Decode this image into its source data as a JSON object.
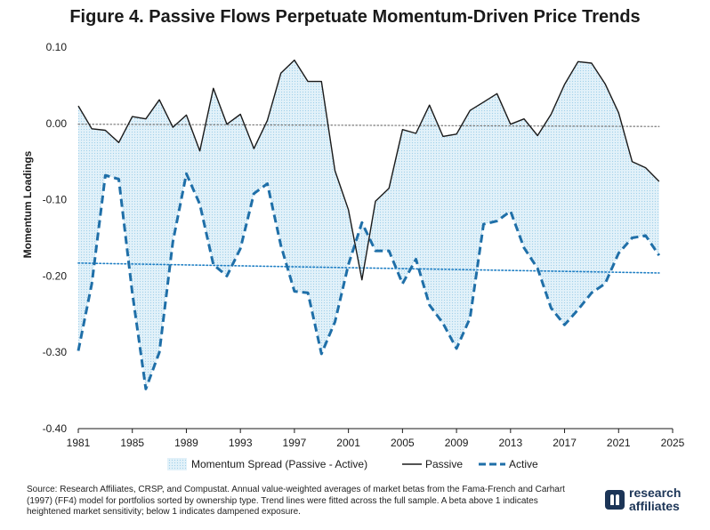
{
  "title": "Figure 4. Passive Flows Perpetuate Momentum-Driven Price Trends",
  "source_note": "Source: Research Affiliates, CRSP, and Compustat. Annual value-weighted averages of market betas from the Fama-French and Carhart (1997) (FF4) model for portfolios sorted by ownership type. Trend lines were fitted across the full sample. A beta above 1 indicates heightened market sensitivity; below 1 indicates dampened exposure.",
  "logo": {
    "line1": "research",
    "line2": "affiliates",
    "mark_icon": "research-affiliates-logo-icon"
  },
  "colors": {
    "passive": "#1a1a1a",
    "active": "#1f6fa8",
    "spread": "#d6ecf7",
    "zero_line": "#777777",
    "trend": "#1f7fc4"
  },
  "chart_data": {
    "type": "line",
    "title": "Figure 4. Passive Flows Perpetuate Momentum-Driven Price Trends",
    "xlabel": "",
    "ylabel": "Momentum Loadings",
    "xlim": [
      1981,
      2025
    ],
    "ylim": [
      -0.4,
      0.1
    ],
    "x_ticks": [
      "1981",
      "1985",
      "1989",
      "1993",
      "1997",
      "2001",
      "2005",
      "2009",
      "2013",
      "2017",
      "2021",
      "2025"
    ],
    "y_ticks": [
      "0.10",
      "0.00",
      "-0.10",
      "-0.20",
      "-0.30",
      "-0.40"
    ],
    "grid": false,
    "legend_position": "bottom",
    "legend": [
      "Momentum Spread (Passive - Active)",
      "Passive",
      "Active"
    ],
    "x": [
      1981,
      1982,
      1983,
      1984,
      1985,
      1986,
      1987,
      1988,
      1989,
      1990,
      1991,
      1992,
      1993,
      1994,
      1995,
      1996,
      1997,
      1998,
      1999,
      2000,
      2001,
      2002,
      2003,
      2004,
      2005,
      2006,
      2007,
      2008,
      2009,
      2010,
      2011,
      2012,
      2013,
      2014,
      2015,
      2016,
      2017,
      2018,
      2019,
      2020,
      2021,
      2022,
      2023,
      2024
    ],
    "series": [
      {
        "name": "Passive",
        "style": "solid",
        "values": [
          0.023,
          -0.007,
          -0.009,
          -0.025,
          0.009,
          0.006,
          0.031,
          -0.005,
          0.011,
          -0.036,
          0.046,
          -0.001,
          0.012,
          -0.033,
          0.004,
          0.066,
          0.083,
          0.055,
          0.055,
          -0.062,
          -0.113,
          -0.205,
          -0.102,
          -0.085,
          -0.008,
          -0.013,
          0.024,
          -0.017,
          -0.014,
          0.017,
          0.028,
          0.039,
          -0.001,
          0.006,
          -0.016,
          0.012,
          0.051,
          0.081,
          0.079,
          0.052,
          0.014,
          -0.05,
          -0.058,
          -0.076
        ]
      },
      {
        "name": "Active",
        "style": "dashed",
        "values": [
          -0.298,
          -0.21,
          -0.068,
          -0.073,
          -0.222,
          -0.348,
          -0.3,
          -0.155,
          -0.066,
          -0.106,
          -0.185,
          -0.2,
          -0.164,
          -0.092,
          -0.079,
          -0.16,
          -0.22,
          -0.222,
          -0.302,
          -0.26,
          -0.185,
          -0.13,
          -0.167,
          -0.167,
          -0.21,
          -0.178,
          -0.238,
          -0.262,
          -0.295,
          -0.255,
          -0.132,
          -0.128,
          -0.115,
          -0.163,
          -0.19,
          -0.242,
          -0.264,
          -0.244,
          -0.222,
          -0.21,
          -0.17,
          -0.15,
          -0.147,
          -0.173
        ]
      }
    ],
    "trend_lines": [
      {
        "name": "Passive trend",
        "style": "dotted",
        "x": [
          1981,
          2024
        ],
        "values": [
          -0.001,
          -0.004
        ]
      },
      {
        "name": "Active trend",
        "style": "dotted",
        "x": [
          1981,
          2024
        ],
        "values": [
          -0.183,
          -0.196
        ]
      }
    ],
    "area": {
      "name": "Momentum Spread (Passive - Active)",
      "upper": "Passive",
      "lower": "Active"
    }
  }
}
